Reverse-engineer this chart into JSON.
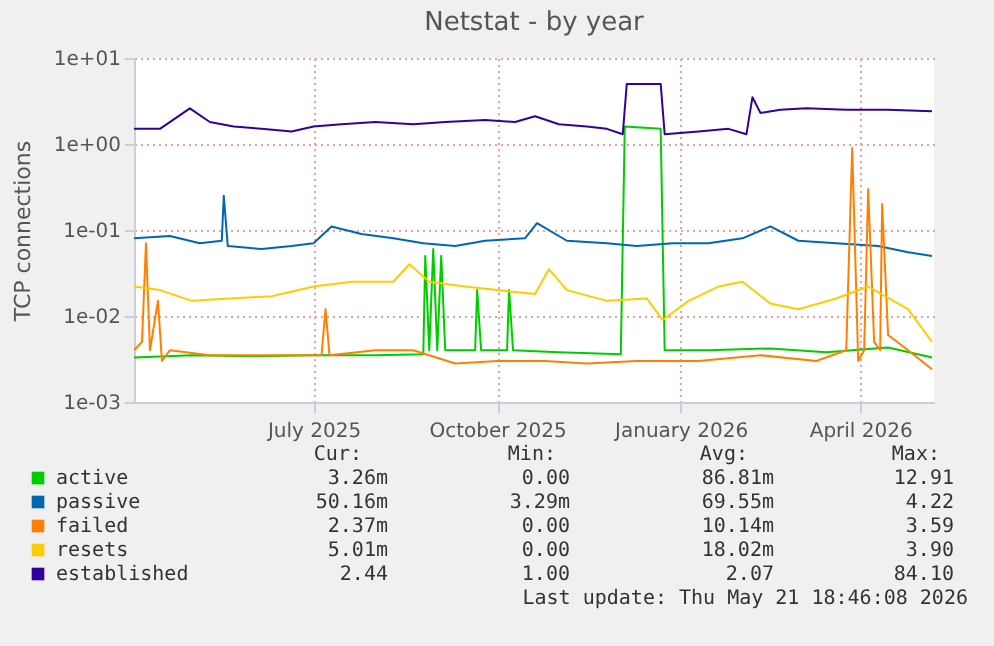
{
  "chart_data": {
    "type": "line",
    "title": "Netstat - by year",
    "ylabel": "TCP connections",
    "log": "y",
    "grid": true,
    "legend": "bottom left",
    "xlim": [
      "2025-04-02",
      "2026-05-08"
    ],
    "xticks": [
      {
        "value": "2025-07-01",
        "label": "July 2025"
      },
      {
        "value": "2025-10-01",
        "label": "October 2025"
      },
      {
        "value": "2026-01-01",
        "label": "January 2026"
      },
      {
        "value": "2026-04-01",
        "label": "April 2026"
      }
    ],
    "ylim": [
      0.001,
      10
    ],
    "yticks": [
      {
        "value": 0.001,
        "label": "1e-03"
      },
      {
        "value": 0.01,
        "label": "1e-02"
      },
      {
        "value": 0.1,
        "label": "1e-01"
      },
      {
        "value": 1,
        "label": "1e+00"
      },
      {
        "value": 10,
        "label": "1e+01"
      }
    ],
    "series": [
      {
        "name": "active",
        "color": "#00cc00",
        "x": [
          "2025-04-02",
          "2025-05-01",
          "2025-06-01",
          "2025-07-01",
          "2025-08-01",
          "2025-08-25",
          "2025-08-26",
          "2025-08-28",
          "2025-08-30",
          "2025-09-01",
          "2025-09-03",
          "2025-09-05",
          "2025-09-20",
          "2025-09-21",
          "2025-09-23",
          "2025-10-06",
          "2025-10-07",
          "2025-10-09",
          "2025-11-01",
          "2025-12-02",
          "2025-12-04",
          "2025-12-22",
          "2025-12-24",
          "2026-01-15",
          "2026-02-15",
          "2026-03-15",
          "2026-04-15",
          "2026-05-07"
        ],
        "values": [
          0.0033,
          0.0035,
          0.0034,
          0.0035,
          0.0035,
          0.0036,
          0.05,
          0.004,
          0.06,
          0.004,
          0.05,
          0.004,
          0.004,
          0.02,
          0.004,
          0.004,
          0.02,
          0.004,
          0.0038,
          0.0036,
          1.6,
          1.5,
          0.004,
          0.004,
          0.0042,
          0.0038,
          0.0043,
          0.0033
        ]
      },
      {
        "name": "passive",
        "color": "#0066b3",
        "x": [
          "2025-04-02",
          "2025-04-20",
          "2025-05-05",
          "2025-05-16",
          "2025-05-17",
          "2025-05-19",
          "2025-06-05",
          "2025-06-20",
          "2025-07-01",
          "2025-07-10",
          "2025-07-25",
          "2025-08-10",
          "2025-08-25",
          "2025-09-10",
          "2025-09-25",
          "2025-10-15",
          "2025-10-21",
          "2025-11-05",
          "2025-11-25",
          "2025-12-10",
          "2025-12-28",
          "2026-01-15",
          "2026-02-01",
          "2026-02-15",
          "2026-03-01",
          "2026-03-20",
          "2026-04-10",
          "2026-04-25",
          "2026-05-07"
        ],
        "values": [
          0.08,
          0.085,
          0.07,
          0.075,
          0.25,
          0.065,
          0.06,
          0.065,
          0.07,
          0.11,
          0.09,
          0.08,
          0.07,
          0.065,
          0.075,
          0.08,
          0.12,
          0.075,
          0.07,
          0.065,
          0.07,
          0.07,
          0.08,
          0.11,
          0.075,
          0.07,
          0.065,
          0.055,
          0.05
        ]
      },
      {
        "name": "failed",
        "color": "#ff8000",
        "x": [
          "2025-04-02",
          "2025-04-06",
          "2025-04-08",
          "2025-04-10",
          "2025-04-14",
          "2025-04-16",
          "2025-04-20",
          "2025-05-10",
          "2025-06-01",
          "2025-07-05",
          "2025-07-07",
          "2025-07-09",
          "2025-08-01",
          "2025-08-20",
          "2025-09-10",
          "2025-10-01",
          "2025-10-25",
          "2025-11-15",
          "2025-12-10",
          "2026-01-10",
          "2026-02-10",
          "2026-03-10",
          "2026-03-25",
          "2026-03-28",
          "2026-03-31",
          "2026-04-03",
          "2026-04-05",
          "2026-04-08",
          "2026-04-11",
          "2026-04-12",
          "2026-04-15",
          "2026-04-25",
          "2026-05-07"
        ],
        "values": [
          0.004,
          0.005,
          0.07,
          0.004,
          0.015,
          0.003,
          0.004,
          0.0035,
          0.0035,
          0.0035,
          0.012,
          0.0035,
          0.004,
          0.004,
          0.0028,
          0.003,
          0.003,
          0.0028,
          0.003,
          0.003,
          0.0035,
          0.003,
          0.004,
          0.9,
          0.003,
          0.004,
          0.3,
          0.005,
          0.004,
          0.2,
          0.006,
          0.004,
          0.0024
        ]
      },
      {
        "name": "resets",
        "color": "#ffcc00",
        "x": [
          "2025-04-02",
          "2025-04-15",
          "2025-05-01",
          "2025-05-20",
          "2025-06-10",
          "2025-07-01",
          "2025-07-20",
          "2025-08-10",
          "2025-08-18",
          "2025-08-28",
          "2025-09-15",
          "2025-10-01",
          "2025-10-20",
          "2025-10-27",
          "2025-11-05",
          "2025-11-25",
          "2025-12-15",
          "2025-12-23",
          "2026-01-05",
          "2026-01-20",
          "2026-02-01",
          "2026-02-15",
          "2026-03-01",
          "2026-03-20",
          "2026-04-05",
          "2026-04-25",
          "2026-05-07"
        ],
        "values": [
          0.022,
          0.02,
          0.015,
          0.016,
          0.017,
          0.022,
          0.025,
          0.025,
          0.04,
          0.025,
          0.022,
          0.02,
          0.018,
          0.035,
          0.02,
          0.015,
          0.016,
          0.009,
          0.015,
          0.022,
          0.025,
          0.014,
          0.012,
          0.016,
          0.022,
          0.012,
          0.005
        ]
      },
      {
        "name": "established",
        "color": "#330099",
        "x": [
          "2025-04-02",
          "2025-04-15",
          "2025-04-30",
          "2025-05-10",
          "2025-05-22",
          "2025-06-05",
          "2025-06-20",
          "2025-07-01",
          "2025-07-15",
          "2025-08-01",
          "2025-08-20",
          "2025-09-05",
          "2025-09-25",
          "2025-10-10",
          "2025-10-20",
          "2025-11-01",
          "2025-11-15",
          "2025-11-25",
          "2025-12-03",
          "2025-12-05",
          "2025-12-22",
          "2025-12-24",
          "2026-01-10",
          "2026-01-25",
          "2026-02-03",
          "2026-02-06",
          "2026-02-10",
          "2026-02-20",
          "2026-03-05",
          "2026-03-25",
          "2026-04-15",
          "2026-05-07"
        ],
        "values": [
          1.5,
          1.5,
          2.6,
          1.8,
          1.6,
          1.5,
          1.4,
          1.6,
          1.7,
          1.8,
          1.7,
          1.8,
          1.9,
          1.8,
          2.1,
          1.7,
          1.6,
          1.5,
          1.3,
          5.0,
          5.0,
          1.3,
          1.4,
          1.5,
          1.3,
          3.5,
          2.3,
          2.5,
          2.6,
          2.5,
          2.5,
          2.4
        ]
      }
    ],
    "annotations": [
      "Cur:",
      "Min:",
      "Avg:",
      "Max:",
      "3.26m",
      "0.00",
      "86.81m",
      "12.91",
      "50.16m",
      "3.29m",
      "69.55m",
      "4.22",
      "2.37m",
      "0.00",
      "10.14m",
      "3.59",
      "5.01m",
      "0.00",
      "18.02m",
      "3.90",
      "2.44",
      "1.00",
      "2.07",
      "84.10",
      "Last update: Thu May 21 18:46:08 2026"
    ]
  }
}
